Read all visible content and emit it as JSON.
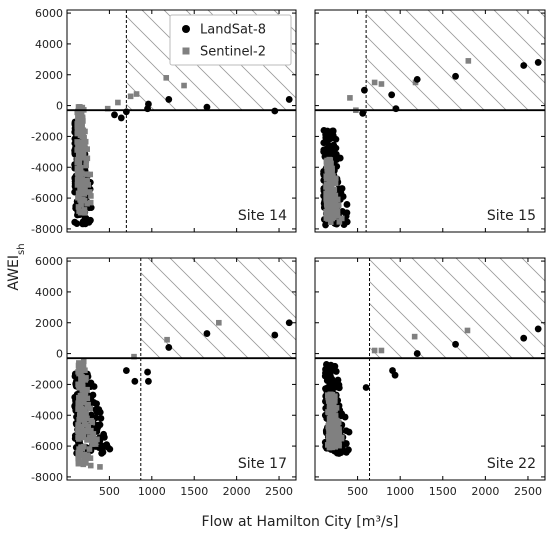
{
  "chart_data": {
    "type": "scatter",
    "layout": "2x2 grid of scatter panels with shared axes",
    "xlabel": "Flow at Hamilton City [m³/s]",
    "ylabel_main": "AWEI",
    "ylabel_sub": "sh",
    "xlim": [
      0,
      2700
    ],
    "ylim": [
      -8200,
      6200
    ],
    "xticks": [
      500,
      1000,
      1500,
      2000,
      2500
    ],
    "yticks": [
      -8000,
      -6000,
      -4000,
      -2000,
      0,
      2000,
      4000,
      6000
    ],
    "grid": false,
    "legend": {
      "placement": "top-right of first panel",
      "entries": [
        {
          "name": "LandSat-8",
          "marker": "circle",
          "color": "#000000"
        },
        {
          "name": "Sentinel-2",
          "marker": "square",
          "color": "#808080"
        }
      ]
    },
    "region_style": "diagonal hatching above threshold and right of flow threshold",
    "panels": [
      {
        "label": "Site 14",
        "threshold_x": 700,
        "threshold_y": -300,
        "landsat_points": [
          [
            560,
            -600
          ],
          [
            640,
            -800
          ],
          [
            700,
            -400
          ],
          [
            950,
            -200
          ],
          [
            960,
            100
          ],
          [
            1200,
            400
          ],
          [
            1650,
            -100
          ],
          [
            2450,
            -350
          ],
          [
            2620,
            400
          ]
        ],
        "sentinel_points": [
          [
            480,
            -200
          ],
          [
            600,
            200
          ],
          [
            750,
            600
          ],
          [
            820,
            750
          ],
          [
            1170,
            1800
          ],
          [
            1380,
            1300
          ]
        ],
        "cluster_ranges": [
          {
            "series": "landsat",
            "x": [
              90,
              350
            ],
            "y": [
              -7700,
              -1000
            ]
          },
          {
            "series": "sentinel",
            "x": [
              120,
              320
            ],
            "y": [
              -7000,
              0
            ]
          }
        ]
      },
      {
        "label": "Site 15",
        "threshold_x": 600,
        "threshold_y": -300,
        "landsat_points": [
          [
            560,
            -500
          ],
          [
            580,
            1000
          ],
          [
            900,
            700
          ],
          [
            950,
            -200
          ],
          [
            1200,
            1700
          ],
          [
            1650,
            1900
          ],
          [
            2450,
            2600
          ],
          [
            2620,
            2800
          ]
        ],
        "sentinel_points": [
          [
            410,
            500
          ],
          [
            480,
            -300
          ],
          [
            700,
            1500
          ],
          [
            780,
            1400
          ],
          [
            1180,
            1500
          ],
          [
            1800,
            2900
          ]
        ],
        "cluster_ranges": [
          {
            "series": "landsat",
            "x": [
              100,
              480
            ],
            "y": [
              -7800,
              -1600
            ]
          },
          {
            "series": "sentinel",
            "x": [
              130,
              330
            ],
            "y": [
              -7600,
              -3500
            ]
          }
        ]
      },
      {
        "label": "Site 17",
        "threshold_x": 870,
        "threshold_y": -300,
        "landsat_points": [
          [
            700,
            -1100
          ],
          [
            800,
            -1800
          ],
          [
            950,
            -1200
          ],
          [
            960,
            -1800
          ],
          [
            1200,
            400
          ],
          [
            1650,
            1300
          ],
          [
            2450,
            1200
          ],
          [
            2620,
            2000
          ]
        ],
        "sentinel_points": [
          [
            790,
            -200
          ],
          [
            1180,
            900
          ],
          [
            1790,
            2000
          ]
        ],
        "cluster_ranges": [
          {
            "series": "landsat",
            "x": [
              90,
              600
            ],
            "y": [
              -6500,
              -1300
            ]
          },
          {
            "series": "sentinel",
            "x": [
              130,
              420
            ],
            "y": [
              -7400,
              -500
            ]
          }
        ]
      },
      {
        "label": "Site 22",
        "threshold_x": 640,
        "threshold_y": -300,
        "landsat_points": [
          [
            600,
            -2200
          ],
          [
            910,
            -1100
          ],
          [
            940,
            -1400
          ],
          [
            1200,
            0
          ],
          [
            1650,
            600
          ],
          [
            2450,
            1000
          ],
          [
            2620,
            1600
          ]
        ],
        "sentinel_points": [
          [
            700,
            200
          ],
          [
            780,
            200
          ],
          [
            1170,
            1100
          ],
          [
            1790,
            1500
          ]
        ],
        "cluster_ranges": [
          {
            "series": "landsat",
            "x": [
              120,
              460
            ],
            "y": [
              -6600,
              -600
            ]
          },
          {
            "series": "sentinel",
            "x": [
              150,
              360
            ],
            "y": [
              -6100,
              -2500
            ]
          }
        ]
      }
    ]
  }
}
